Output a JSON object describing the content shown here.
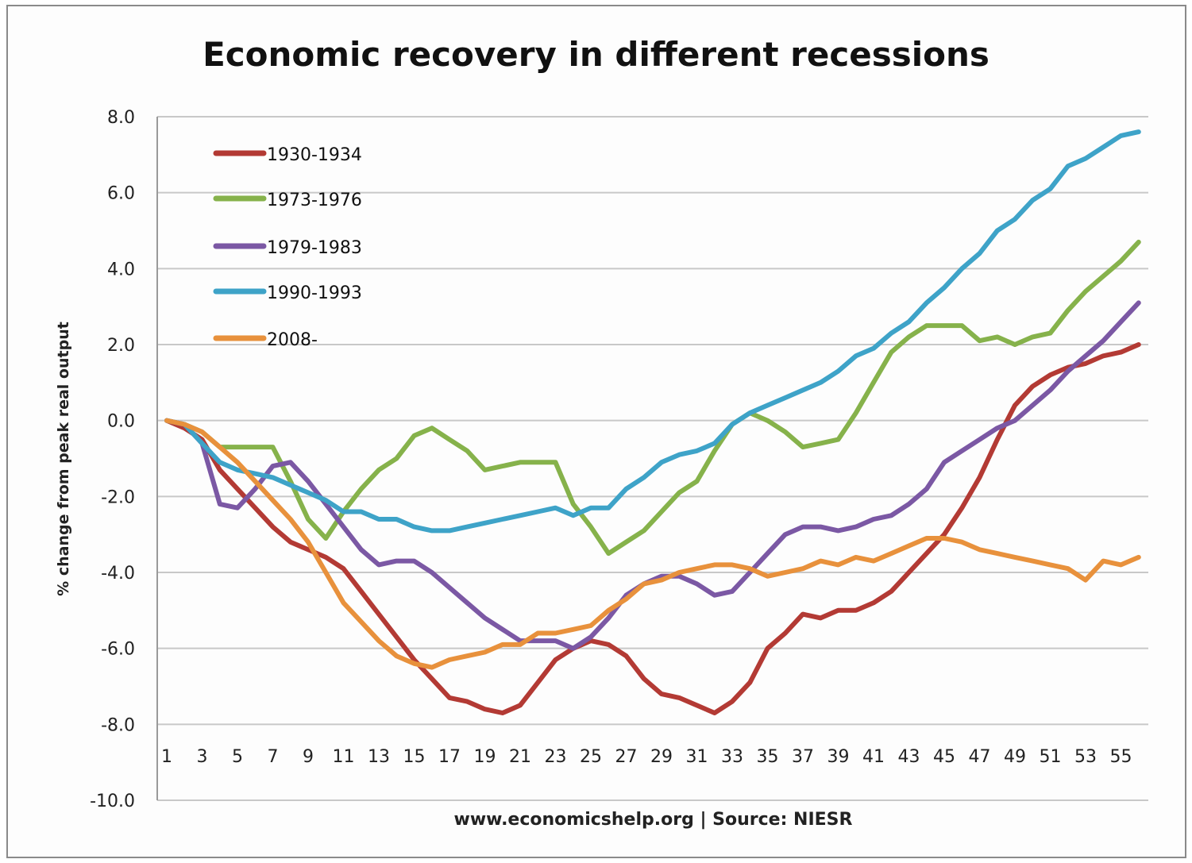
{
  "chart_data": {
    "type": "line",
    "title": "Economic recovery in different recessions",
    "ylabel": "% change from peak real output",
    "source_note": "www.economicshelp.org | Source: NIESR",
    "ylim": [
      -10,
      8
    ],
    "yticks": [
      "8.0",
      "6.0",
      "4.0",
      "2.0",
      "0.0",
      "-2.0",
      "-4.0",
      "-6.0",
      "-8.0",
      "-10.0"
    ],
    "xticks": [
      "1",
      "3",
      "5",
      "7",
      "9",
      "11",
      "13",
      "15",
      "17",
      "19",
      "21",
      "23",
      "25",
      "27",
      "29",
      "31",
      "33",
      "35",
      "37",
      "39",
      "41",
      "43",
      "45",
      "47",
      "49",
      "51",
      "53",
      "55"
    ],
    "x": [
      1,
      2,
      3,
      4,
      5,
      6,
      7,
      8,
      9,
      10,
      11,
      12,
      13,
      14,
      15,
      16,
      17,
      18,
      19,
      20,
      21,
      22,
      23,
      24,
      25,
      26,
      27,
      28,
      29,
      30,
      31,
      32,
      33,
      34,
      35,
      36,
      37,
      38,
      39,
      40,
      41,
      42,
      43,
      44,
      45,
      46,
      47,
      48,
      49,
      50,
      51,
      52,
      53,
      54,
      55,
      56
    ],
    "grid": true,
    "legend_position": "top-left",
    "series": [
      {
        "name": "1930-1934",
        "color": "#b33a34",
        "values": [
          0,
          -0.2,
          -0.5,
          -1.3,
          -1.8,
          -2.3,
          -2.8,
          -3.2,
          -3.4,
          -3.6,
          -3.9,
          -4.5,
          -5.1,
          -5.7,
          -6.3,
          -6.8,
          -7.3,
          -7.4,
          -7.6,
          -7.7,
          -7.5,
          -6.9,
          -6.3,
          -6.0,
          -5.8,
          -5.9,
          -6.2,
          -6.8,
          -7.2,
          -7.3,
          -7.5,
          -7.7,
          -7.4,
          -6.9,
          -6.0,
          -5.6,
          -5.1,
          -5.2,
          -5.0,
          -5.0,
          -4.8,
          -4.5,
          -4.0,
          -3.5,
          -3.0,
          -2.3,
          -1.5,
          -0.5,
          0.4,
          0.9,
          1.2,
          1.4,
          1.5,
          1.7,
          1.8,
          2.0
        ]
      },
      {
        "name": "1973-1976",
        "color": "#86b24b",
        "values": [
          0,
          -0.1,
          -0.3,
          -0.7,
          -0.7,
          -0.7,
          -0.7,
          -1.6,
          -2.6,
          -3.1,
          -2.4,
          -1.8,
          -1.3,
          -1.0,
          -0.4,
          -0.2,
          -0.5,
          -0.8,
          -1.3,
          -1.2,
          -1.1,
          -1.1,
          -1.1,
          -2.2,
          -2.8,
          -3.5,
          -3.2,
          -2.9,
          -2.4,
          -1.9,
          -1.6,
          -0.8,
          -0.1,
          0.2,
          0,
          -0.3,
          -0.7,
          -0.6,
          -0.5,
          0.2,
          1.0,
          1.8,
          2.2,
          2.5,
          2.5,
          2.5,
          2.1,
          2.2,
          2.0,
          2.2,
          2.3,
          2.9,
          3.4,
          3.8,
          4.2,
          4.7
        ]
      },
      {
        "name": "1979-1983",
        "color": "#7b58a4",
        "values": [
          0,
          -0.1,
          -0.6,
          -2.2,
          -2.3,
          -1.8,
          -1.2,
          -1.1,
          -1.6,
          -2.2,
          -2.8,
          -3.4,
          -3.8,
          -3.7,
          -3.7,
          -4.0,
          -4.4,
          -4.8,
          -5.2,
          -5.5,
          -5.8,
          -5.8,
          -5.8,
          -6.0,
          -5.7,
          -5.2,
          -4.6,
          -4.3,
          -4.1,
          -4.1,
          -4.3,
          -4.6,
          -4.5,
          -4.0,
          -3.5,
          -3.0,
          -2.8,
          -2.8,
          -2.9,
          -2.8,
          -2.6,
          -2.5,
          -2.2,
          -1.8,
          -1.1,
          -0.8,
          -0.5,
          -0.2,
          0,
          0.4,
          0.8,
          1.3,
          1.7,
          2.1,
          2.6,
          3.1
        ]
      },
      {
        "name": "1990-1993",
        "color": "#3ea3c8",
        "values": [
          0,
          -0.1,
          -0.6,
          -1.1,
          -1.3,
          -1.4,
          -1.5,
          -1.7,
          -1.9,
          -2.1,
          -2.4,
          -2.4,
          -2.6,
          -2.6,
          -2.8,
          -2.9,
          -2.9,
          -2.8,
          -2.7,
          -2.6,
          -2.5,
          -2.4,
          -2.3,
          -2.5,
          -2.3,
          -2.3,
          -1.8,
          -1.5,
          -1.1,
          -0.9,
          -0.8,
          -0.6,
          -0.1,
          0.2,
          0.4,
          0.6,
          0.8,
          1.0,
          1.3,
          1.7,
          1.9,
          2.3,
          2.6,
          3.1,
          3.5,
          4.0,
          4.4,
          5.0,
          5.3,
          5.8,
          6.1,
          6.7,
          6.9,
          7.2,
          7.5,
          7.6
        ]
      },
      {
        "name": "2008-",
        "color": "#e8913c",
        "values": [
          0,
          -0.1,
          -0.3,
          -0.7,
          -1.1,
          -1.6,
          -2.1,
          -2.6,
          -3.2,
          -4.0,
          -4.8,
          -5.3,
          -5.8,
          -6.2,
          -6.4,
          -6.5,
          -6.3,
          -6.2,
          -6.1,
          -5.9,
          -5.9,
          -5.6,
          -5.6,
          -5.5,
          -5.4,
          -5.0,
          -4.7,
          -4.3,
          -4.2,
          -4.0,
          -3.9,
          -3.8,
          -3.8,
          -3.9,
          -4.1,
          -4.0,
          -3.9,
          -3.7,
          -3.8,
          -3.6,
          -3.7,
          -3.5,
          -3.3,
          -3.1,
          -3.1,
          -3.2,
          -3.4,
          -3.5,
          -3.6,
          -3.7,
          -3.8,
          -3.9,
          -4.2,
          -3.7,
          -3.8,
          -3.6
        ]
      }
    ]
  }
}
